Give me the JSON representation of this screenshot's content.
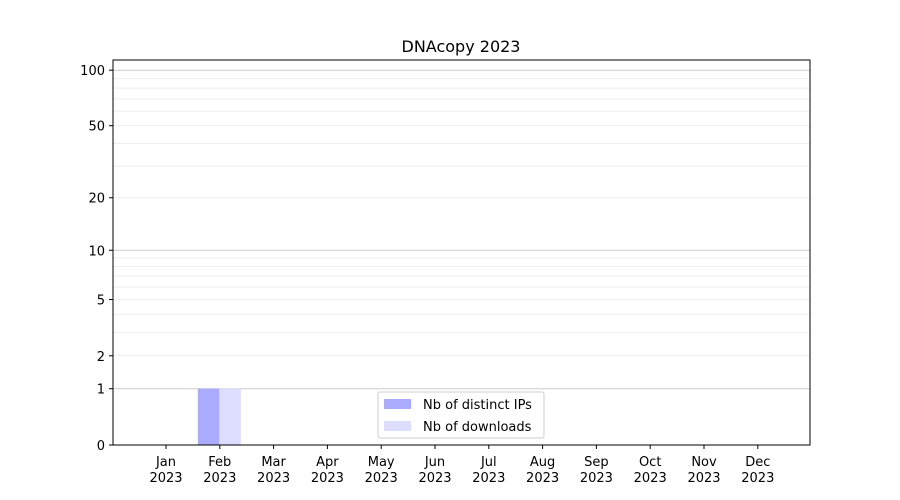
{
  "chart_data": {
    "type": "bar",
    "title": "DNAcopy 2023",
    "xlabel": "",
    "ylabel": "",
    "yscale": "log(1+y)",
    "ylim": [
      0,
      113
    ],
    "yticks": [
      0,
      1,
      2,
      5,
      10,
      20,
      50,
      100
    ],
    "categories": [
      "Jan\n2023",
      "Feb\n2023",
      "Mar\n2023",
      "Apr\n2023",
      "May\n2023",
      "Jun\n2023",
      "Jul\n2023",
      "Aug\n2023",
      "Sep\n2023",
      "Oct\n2023",
      "Nov\n2023",
      "Dec\n2023"
    ],
    "grid": true,
    "legend_position": "bottom-center",
    "series": [
      {
        "name": "Nb of distinct IPs",
        "color": "#aaaaff",
        "values": [
          0,
          1,
          0,
          0,
          0,
          0,
          0,
          0,
          0,
          0,
          0,
          0
        ]
      },
      {
        "name": "Nb of downloads",
        "color": "#ddddff",
        "values": [
          0,
          1,
          0,
          0,
          0,
          0,
          0,
          0,
          0,
          0,
          0,
          0
        ]
      }
    ]
  }
}
